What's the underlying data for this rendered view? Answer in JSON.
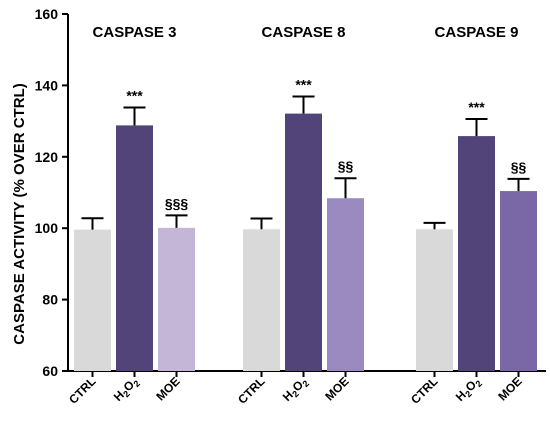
{
  "chart_data": {
    "type": "bar",
    "ylabel": "CASPASE ACTIVITY (% OVER CTRL)",
    "ylim": [
      60,
      160
    ],
    "yticks": [
      60,
      80,
      100,
      120,
      140,
      160
    ],
    "grid": false,
    "legend": "none",
    "groups": [
      {
        "title": "CASPASE 3",
        "bars": [
          {
            "category": "CTRL",
            "value": 99.6,
            "error": 3.2,
            "annotation": "",
            "color": "#d9d9d9"
          },
          {
            "category": "H2O2",
            "value": 128.8,
            "error": 5.0,
            "annotation": "***",
            "color": "#524478"
          },
          {
            "category": "MOE",
            "value": 100.1,
            "error": 3.5,
            "annotation": "§§§",
            "color": "#c4b6d6"
          }
        ]
      },
      {
        "title": "CASPASE 8",
        "bars": [
          {
            "category": "CTRL",
            "value": 99.7,
            "error": 3.0,
            "annotation": "",
            "color": "#d9d9d9"
          },
          {
            "category": "H2O2",
            "value": 132.1,
            "error": 4.8,
            "annotation": "***",
            "color": "#524478"
          },
          {
            "category": "MOE",
            "value": 108.4,
            "error": 5.6,
            "annotation": "§§",
            "color": "#9a8ac0"
          }
        ]
      },
      {
        "title": "CASPASE 9",
        "bars": [
          {
            "category": "CTRL",
            "value": 99.7,
            "error": 1.8,
            "annotation": "",
            "color": "#d9d9d9"
          },
          {
            "category": "H2O2",
            "value": 125.8,
            "error": 4.8,
            "annotation": "***",
            "color": "#524478"
          },
          {
            "category": "MOE",
            "value": 110.4,
            "error": 3.4,
            "annotation": "§§",
            "color": "#7a68a6"
          }
        ]
      }
    ]
  }
}
